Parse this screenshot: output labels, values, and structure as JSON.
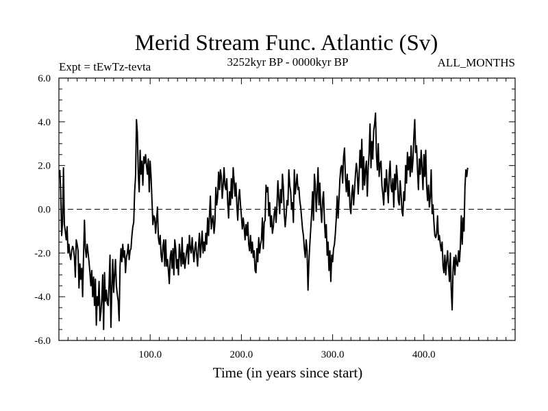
{
  "chart_data": {
    "type": "line",
    "title": "Merid Stream Func. Atlantic (Sv)",
    "subtitle_left": "Expt = tEwTz-tevta",
    "subtitle_center": "3252kyr BP - 0000kyr BP",
    "subtitle_right": "ALL_MONTHS",
    "xlabel": "Time (in years since start)",
    "ylabel": "",
    "xlim": [
      0,
      500
    ],
    "ylim": [
      -6,
      6
    ],
    "xticks": [
      100,
      200,
      300,
      400
    ],
    "xtick_labels": [
      "100.0",
      "200.0",
      "300.0",
      "400.0"
    ],
    "yticks": [
      -6,
      -4,
      -2,
      0,
      2,
      4,
      6
    ],
    "ytick_labels": [
      "-6.0",
      "-4.0",
      "-2.0",
      "0.0",
      "2.0",
      "4.0",
      "6.0"
    ],
    "reference_line": {
      "y": 0,
      "style": "dashed"
    },
    "series": [
      {
        "name": "Meridional stream function",
        "x_start": 1,
        "x_step": 1,
        "values": [
          1.8,
          0.8,
          -1.2,
          -0.6,
          1.9,
          -0.7,
          -1.0,
          -1.4,
          -0.8,
          -2.0,
          -1.6,
          -2.1,
          -2.3,
          -1.9,
          -1.7,
          -1.8,
          -2.2,
          -3.1,
          -1.4,
          -1.6,
          -1.9,
          -3.6,
          -2.5,
          -3.2,
          -2.7,
          -4.0,
          -2.1,
          -0.5,
          -1.8,
          -2.2,
          -1.6,
          -2.0,
          -2.4,
          -2.9,
          -3.5,
          -2.8,
          -4.0,
          -3.1,
          -4.4,
          -3.2,
          -5.3,
          -4.0,
          -4.4,
          -3.3,
          -5.1,
          -4.7,
          -4.1,
          -3.0,
          -5.5,
          -2.9,
          -4.2,
          -3.7,
          -4.3,
          -4.4,
          -3.4,
          -2.1,
          -5.4,
          -3.6,
          -2.3,
          -3.8,
          -3.0,
          -2.3,
          -3.5,
          -3.9,
          -4.2,
          -5.1,
          -2.6,
          -1.8,
          -2.4,
          -1.6,
          -2.2,
          -1.9,
          -2.9,
          -2.2,
          -2.0,
          -1.6,
          -2.3,
          -1.9,
          -1.8,
          -1.2,
          -0.8,
          -0.6,
          0.8,
          1.5,
          4.1,
          3.5,
          1.6,
          0.8,
          2.7,
          1.6,
          2.2,
          1.1,
          2.4,
          2.1,
          2.5,
          2.0,
          1.6,
          2.3,
          0.8,
          2.2,
          1.5,
          0.4,
          -0.7,
          -0.3,
          -0.4,
          -1.1,
          -0.5,
          0.1,
          -1.3,
          -1.6,
          -1.2,
          -2.1,
          -2.4,
          -1.7,
          -1.4,
          -2.6,
          -1.4,
          -2.6,
          -2.3,
          -2.8,
          -3.4,
          -2.2,
          -1.9,
          -2.7,
          -1.8,
          -3.0,
          -1.4,
          -1.8,
          -2.7,
          -2.3,
          -3.0,
          -1.6,
          -2.1,
          -2.6,
          -1.3,
          -2.5,
          -2.0,
          -2.7,
          -2.3,
          -1.9,
          -1.6,
          -2.5,
          -1.2,
          -1.8,
          -2.0,
          -1.3,
          -1.9,
          -2.4,
          -1.8,
          -1.5,
          -2.1,
          -2.6,
          -1.7,
          -1.1,
          -2.2,
          -1.6,
          -1.0,
          -2.0,
          -1.5,
          -1.9,
          -1.1,
          -1.6,
          -0.4,
          -1.2,
          -0.3,
          0.6,
          -0.9,
          -0.5,
          -0.3,
          -1.1,
          -0.6,
          1.0,
          0.2,
          0.6,
          1.7,
          0.9,
          1.8,
          1.5,
          0.5,
          1.1,
          1.9,
          1.1,
          0.9,
          1.4,
          0.3,
          -0.4,
          0.8,
          0.2,
          1.4,
          0.5,
          1.9,
          1.3,
          0.6,
          1.2,
          0.2,
          -0.5,
          0.5,
          0.9,
          0.2,
          -0.3,
          -0.9,
          -0.4,
          -0.8,
          -1.4,
          -0.7,
          -1.2,
          -0.6,
          -1.6,
          -1.9,
          -1.2,
          -2.0,
          -1.5,
          -2.2,
          -1.9,
          -2.8,
          -2.9,
          -1.8,
          -2.4,
          -1.3,
          -2.0,
          -1.6,
          -1.4,
          -0.4,
          -1.8,
          -0.6,
          -0.5,
          1.1,
          0.8,
          1.0,
          -0.3,
          0.3,
          -0.8,
          -0.3,
          -1.1,
          -0.8,
          -0.2,
          0.1,
          -0.6,
          0.2,
          1.3,
          0.5,
          -0.2,
          0.9,
          0.3,
          1.6,
          1.0,
          -0.2,
          -0.8,
          -0.3,
          0.4,
          0.2,
          1.8,
          1.1,
          0.8,
          0.0,
          0.3,
          -0.6,
          1.8,
          0.7,
          1.1,
          1.6,
          0.9,
          1.0,
          0.4,
          0.1,
          -0.4,
          -0.9,
          -1.2,
          -1.8,
          -2.2,
          -1.4,
          -1.9,
          -3.7,
          -2.4,
          -1.6,
          -0.9,
          -0.2,
          0.8,
          -0.5,
          1.6,
          1.1,
          -0.1,
          0.8,
          1.9,
          0.2,
          1.2,
          0.0,
          -0.6,
          0.4,
          0.8,
          -0.5,
          -1.3,
          -0.7,
          -2.1,
          -1.5,
          -2.8,
          -1.9,
          -3.3,
          -2.1,
          -2.4,
          -1.8,
          -1.6,
          -1.1,
          -0.4,
          0.6,
          -0.4,
          0.5,
          1.4,
          1.9,
          2.0,
          1.2,
          2.4,
          2.8,
          1.5,
          0.8,
          1.6,
          0.6,
          1.3,
          0.1,
          -0.2,
          0.7,
          1.1,
          0.2,
          0.9,
          1.6,
          2.1,
          1.7,
          0.7,
          1.5,
          2.7,
          1.9,
          3.2,
          0.9,
          2.4,
          1.1,
          1.8,
          2.2,
          0.6,
          1.9,
          2.6,
          3.9,
          1.9,
          3.1,
          2.3,
          3.6,
          3.9,
          4.4,
          2.5,
          1.8,
          3.0,
          1.5,
          2.1,
          2.2,
          1.1,
          0.7,
          0.2,
          1.4,
          0.8,
          1.8,
          1.0,
          0.3,
          1.6,
          2.2,
          1.0,
          0.8,
          1.4,
          0.1,
          1.6,
          0.9,
          2.0,
          1.4,
          0.4,
          0.2,
          1.3,
          0.7,
          -0.1,
          -0.3,
          0.8,
          0.4,
          2.0,
          1.2,
          2.6,
          1.8,
          2.4,
          1.5,
          2.9,
          1.7,
          2.2,
          3.3,
          4.1,
          2.6,
          2.9,
          1.8,
          0.9,
          2.3,
          1.6,
          2.7,
          1.9,
          0.9,
          2.5,
          1.5,
          2.7,
          1.1,
          0.4,
          1.1,
          0.1,
          0.6,
          1.8,
          -0.2,
          0.2,
          -0.6,
          -1.2,
          -1.3,
          -1.1,
          -0.3,
          -1.4,
          -1.2,
          -1.6,
          -1.9,
          -1.5,
          -2.6,
          -2.9,
          -2.1,
          -3.0,
          -2.4,
          -1.9,
          -2.6,
          -3.3,
          -2.0,
          -3.7,
          -4.6,
          -2.7,
          -2.2,
          -3.0,
          -2.1,
          -2.5,
          -2.6,
          -1.9,
          -2.4,
          -1.7,
          -0.3,
          -1.6,
          -0.4,
          -1.0,
          1.0,
          1.8,
          1.5,
          1.9
        ]
      }
    ]
  }
}
